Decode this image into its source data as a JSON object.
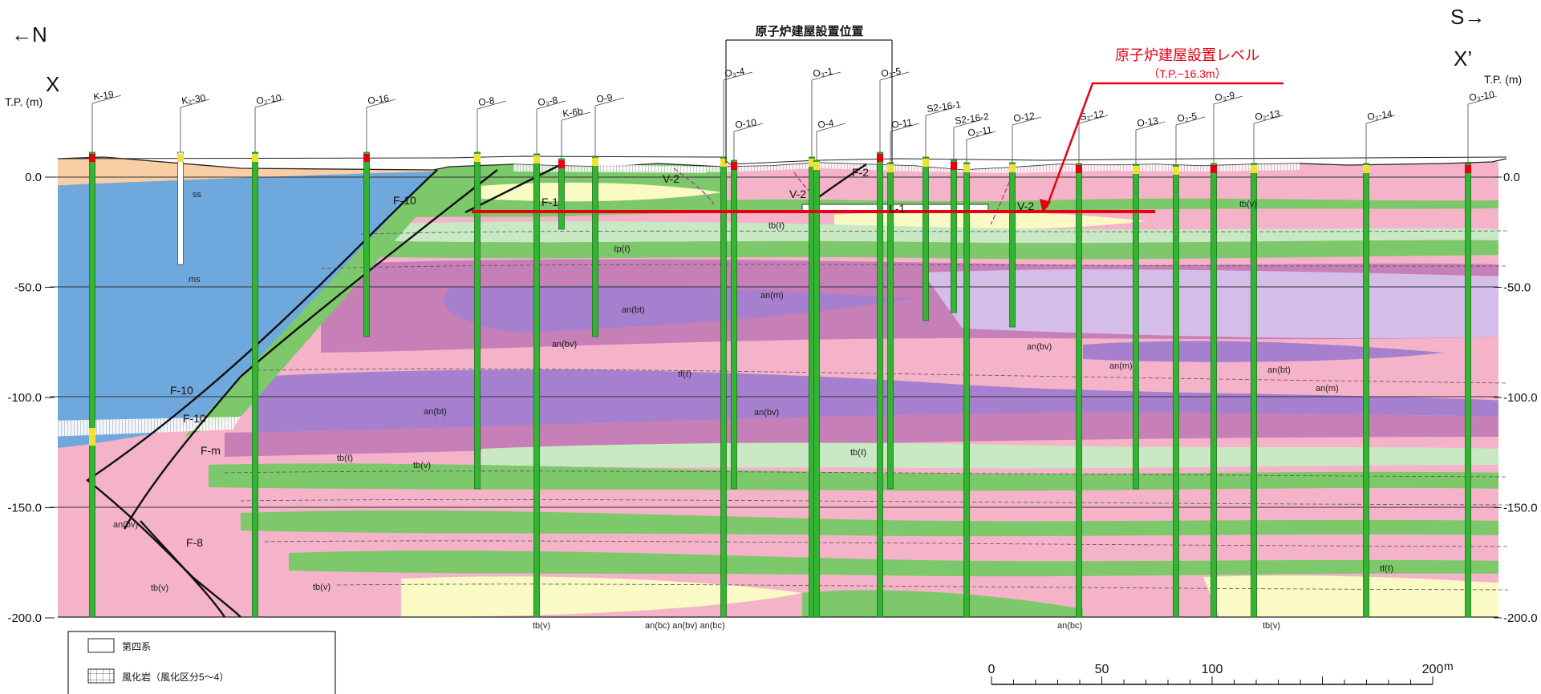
{
  "direction": {
    "north": "←N",
    "south": "S→"
  },
  "section": {
    "start": "X",
    "end": "X’"
  },
  "axis": {
    "unit_label": "T.P. (m)",
    "ticks": [
      {
        "value": 0,
        "label": "0.0"
      },
      {
        "value": -50,
        "label": "-50.0"
      },
      {
        "value": -100,
        "label": "-100.0"
      },
      {
        "value": -150,
        "label": "-150.0"
      },
      {
        "value": -200,
        "label": "-200.0"
      }
    ]
  },
  "reactor_position_label": "原子炉建屋設置位置",
  "reactor_level": {
    "title": "原子炉建屋設置レベル",
    "value": "（T.P.−16.3m）",
    "color": "#e60012"
  },
  "boreholes": [
    {
      "name": "K-19"
    },
    {
      "name": "K₂-30"
    },
    {
      "name": "O₂-10"
    },
    {
      "name": "O-16"
    },
    {
      "name": "O-8"
    },
    {
      "name": "O₃-8"
    },
    {
      "name": "K-6b"
    },
    {
      "name": "O-9"
    },
    {
      "name": "O₃-4"
    },
    {
      "name": "O-10"
    },
    {
      "name": "O₃-1"
    },
    {
      "name": "O-4"
    },
    {
      "name": "O₃-5"
    },
    {
      "name": "O-11"
    },
    {
      "name": "S2-16-1"
    },
    {
      "name": "S2-16-2"
    },
    {
      "name": "O₂-11"
    },
    {
      "name": "O-12"
    },
    {
      "name": "S₂-12"
    },
    {
      "name": "O-13"
    },
    {
      "name": "O₂-5"
    },
    {
      "name": "O₃-9"
    },
    {
      "name": "O₂-13"
    },
    {
      "name": "O₂-14"
    },
    {
      "name": "O₃-10"
    }
  ],
  "faults": [
    "F-10",
    "F-10",
    "F-10",
    "F-m",
    "F-8",
    "F-1",
    "V-2",
    "V-2",
    "F-2",
    "L-1",
    "V-2"
  ],
  "rock_labels": [
    "ss",
    "ms",
    "tb(v)",
    "tb(ℓ)",
    "tf(ℓ)",
    "ℓp(ℓ)",
    "an(m)",
    "an(bt)",
    "an(bv)",
    "an(bc)"
  ],
  "bottom_labels": [
    "tb(v)",
    "an(bc) an(bv) an(bc)",
    "an(bc)",
    "tb(v)"
  ],
  "legend": [
    {
      "label": "第四系",
      "pattern": "blank"
    },
    {
      "label": "風化岩（風化区分5～4）",
      "pattern": "grid"
    }
  ],
  "scale": {
    "ticks": [
      {
        "value": 0,
        "label": "0"
      },
      {
        "value": 50,
        "label": "50"
      },
      {
        "value": 100,
        "label": "100"
      },
      {
        "value": 200,
        "label": "200"
      }
    ],
    "unit": "m"
  },
  "colors": {
    "pink": "#f5b3c9",
    "green": "#7dc86a",
    "purple": "#a67fcf",
    "lavender": "#d4bde8",
    "magenta": "#c77fb7",
    "cream": "#fafac4",
    "blue": "#6fa8dc",
    "sand": "#f8cfa5",
    "pale_green": "#c9e8c4",
    "red": "#e60012",
    "borehole": "#33b533"
  }
}
